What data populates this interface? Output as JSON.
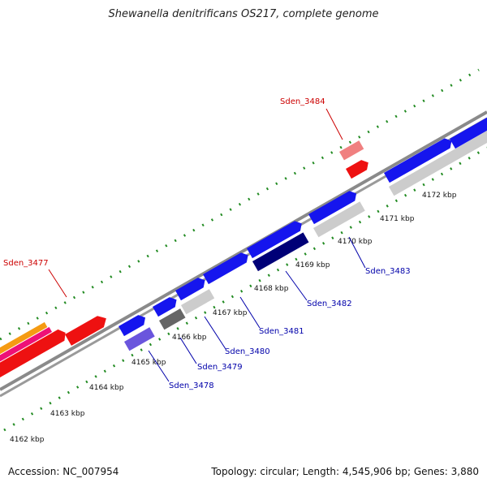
{
  "title": "Shewanella denitrificans OS217, complete genome",
  "footer": {
    "accession": "Accession: NC_007954",
    "summary": "Topology: circular; Length: 4,545,906 bp; Genes: 3,880"
  },
  "scale_labels": [
    "4162 kbp",
    "4163 kbp",
    "4164 kbp",
    "4165 kbp",
    "4166 kbp",
    "4167 kbp",
    "4168 kbp",
    "4169 kbp",
    "4170 kbp",
    "4171 kbp",
    "4172 kbp"
  ],
  "gene_labels": [
    {
      "text": "Sden_3477",
      "color": "#cc0000"
    },
    {
      "text": "Sden_3484",
      "color": "#cc0000"
    },
    {
      "text": "Sden_3478",
      "color": "#0000aa"
    },
    {
      "text": "Sden_3479",
      "color": "#0000aa"
    },
    {
      "text": "Sden_3480",
      "color": "#0000aa"
    },
    {
      "text": "Sden_3481",
      "color": "#0000aa"
    },
    {
      "text": "Sden_3482",
      "color": "#0000aa"
    },
    {
      "text": "Sden_3483",
      "color": "#0000aa"
    }
  ],
  "colors": {
    "backbone": "#888888",
    "ticks": "#228b22",
    "forward_red": "#ee1111",
    "forward_blue": "#1515ee",
    "reverse_gray": "#cccccc"
  }
}
